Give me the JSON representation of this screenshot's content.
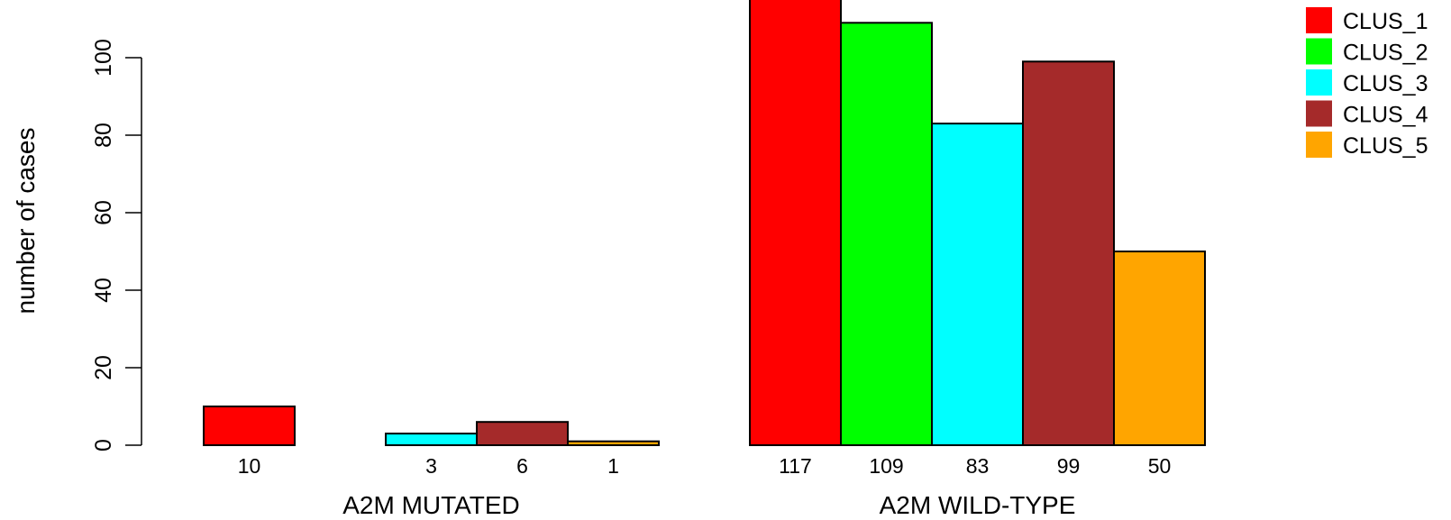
{
  "chart_data": {
    "type": "bar",
    "ylabel": "number of cases",
    "yticks": [
      0,
      20,
      40,
      60,
      80,
      100
    ],
    "ylim": [
      0,
      117
    ],
    "groups": [
      {
        "label": "A2M MUTATED",
        "values": [
          10,
          0,
          3,
          6,
          1
        ],
        "value_labels": [
          "10",
          "",
          "3",
          "6",
          "1"
        ]
      },
      {
        "label": "A2M WILD-TYPE",
        "values": [
          117,
          109,
          83,
          99,
          50
        ],
        "value_labels": [
          "117",
          "109",
          "83",
          "99",
          "50"
        ]
      }
    ],
    "series": [
      {
        "name": "CLUS_1",
        "color": "#ff0000"
      },
      {
        "name": "CLUS_2",
        "color": "#00ff00"
      },
      {
        "name": "CLUS_3",
        "color": "#00ffff"
      },
      {
        "name": "CLUS_4",
        "color": "#a52a2a"
      },
      {
        "name": "CLUS_5",
        "color": "#ffa500"
      }
    ],
    "legend_position": "top-right"
  }
}
